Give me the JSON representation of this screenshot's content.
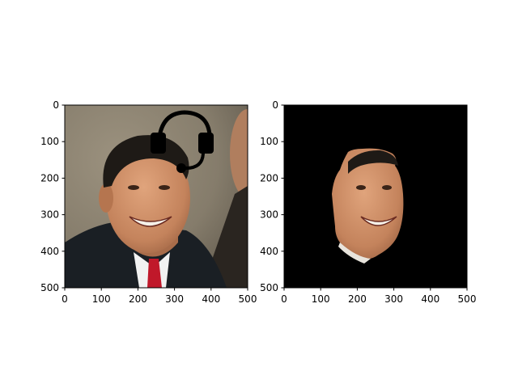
{
  "chart_data": [
    {
      "type": "image",
      "xlim": [
        0,
        500
      ],
      "ylim": [
        500,
        0
      ],
      "xticks": [
        "0",
        "100",
        "200",
        "300",
        "400",
        "500"
      ],
      "yticks": [
        "0",
        "100",
        "200",
        "300",
        "400",
        "500"
      ],
      "grid": false,
      "overlay_icon": "headset-icon",
      "content": "photo-portrait"
    },
    {
      "type": "image",
      "xlim": [
        0,
        500
      ],
      "ylim": [
        500,
        0
      ],
      "xticks": [
        "0",
        "100",
        "200",
        "300",
        "400",
        "500"
      ],
      "yticks": [
        "0",
        "100",
        "200",
        "300",
        "400",
        "500"
      ],
      "grid": false,
      "content": "masked-face-on-black"
    }
  ],
  "colors": {
    "background_left": "#8a8272",
    "mask_background": "#000000",
    "skin": "#c98a62",
    "hair": "#1e1a16",
    "suit": "#1a1f24",
    "tie": "#c0182a",
    "shirt": "#f2f2f2",
    "icon": "#000000"
  }
}
